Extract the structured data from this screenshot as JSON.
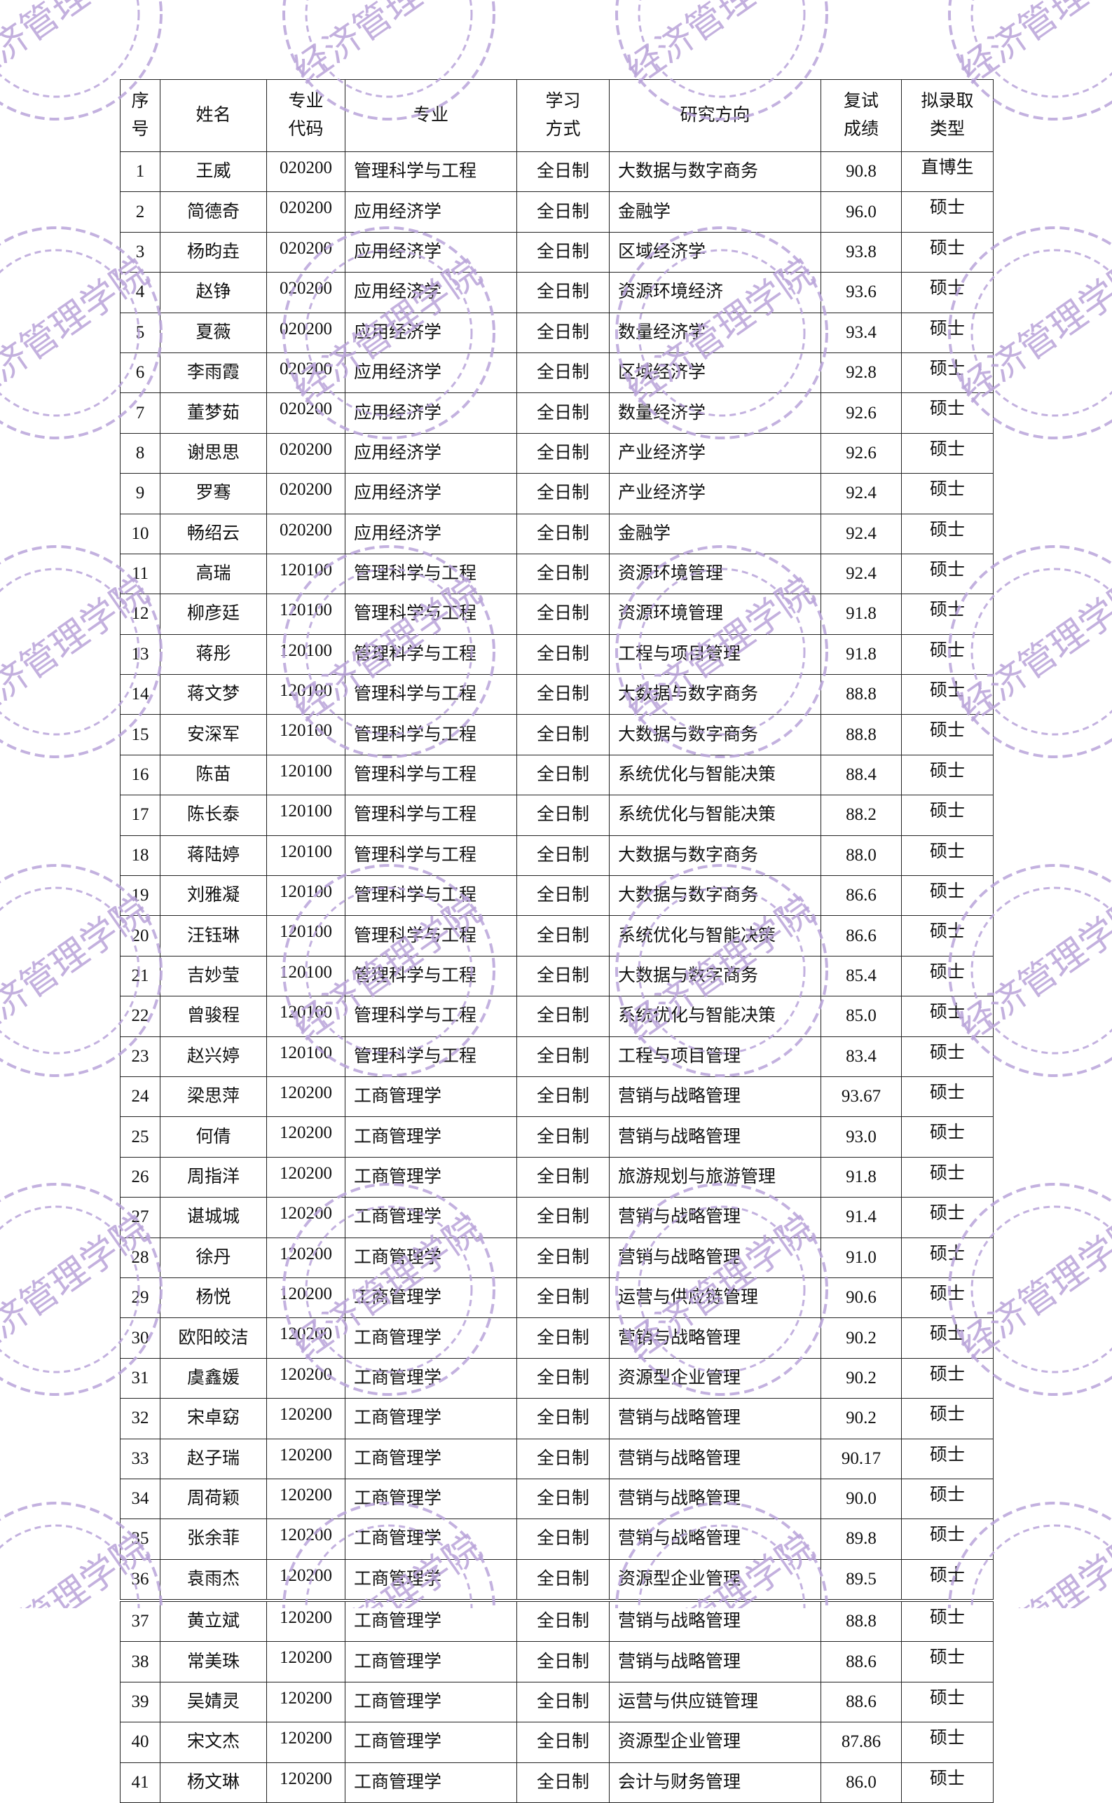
{
  "watermark": {
    "text": "经济管理学院",
    "color": "#b9a3d9"
  },
  "table": {
    "headers": {
      "index": [
        "序",
        "号"
      ],
      "name": "姓名",
      "code": [
        "专业",
        "代码"
      ],
      "major": "专业",
      "mode": [
        "学习",
        "方式"
      ],
      "direction": "研究方向",
      "score": [
        "复试",
        "成绩"
      ],
      "type": [
        "拟录取",
        "类型"
      ]
    },
    "rows": [
      {
        "no": "1",
        "name": "王威",
        "code": "020200",
        "major": "管理科学与工程",
        "mode": "全日制",
        "direction": "大数据与数字商务",
        "score": "90.8",
        "type": "直博生"
      },
      {
        "no": "2",
        "name": "简德奇",
        "code": "020200",
        "major": "应用经济学",
        "mode": "全日制",
        "direction": "金融学",
        "score": "96.0",
        "type": "硕士"
      },
      {
        "no": "3",
        "name": "杨昀垚",
        "code": "020200",
        "major": "应用经济学",
        "mode": "全日制",
        "direction": "区域经济学",
        "score": "93.8",
        "type": "硕士"
      },
      {
        "no": "4",
        "name": "赵铮",
        "code": "020200",
        "major": "应用经济学",
        "mode": "全日制",
        "direction": "资源环境经济",
        "score": "93.6",
        "type": "硕士"
      },
      {
        "no": "5",
        "name": "夏薇",
        "code": "020200",
        "major": "应用经济学",
        "mode": "全日制",
        "direction": "数量经济学",
        "score": "93.4",
        "type": "硕士"
      },
      {
        "no": "6",
        "name": "李雨霞",
        "code": "020200",
        "major": "应用经济学",
        "mode": "全日制",
        "direction": "区域经济学",
        "score": "92.8",
        "type": "硕士"
      },
      {
        "no": "7",
        "name": "董梦茹",
        "code": "020200",
        "major": "应用经济学",
        "mode": "全日制",
        "direction": "数量经济学",
        "score": "92.6",
        "type": "硕士"
      },
      {
        "no": "8",
        "name": "谢思思",
        "code": "020200",
        "major": "应用经济学",
        "mode": "全日制",
        "direction": "产业经济学",
        "score": "92.6",
        "type": "硕士"
      },
      {
        "no": "9",
        "name": "罗骞",
        "code": "020200",
        "major": "应用经济学",
        "mode": "全日制",
        "direction": "产业经济学",
        "score": "92.4",
        "type": "硕士"
      },
      {
        "no": "10",
        "name": "畅绍云",
        "code": "020200",
        "major": "应用经济学",
        "mode": "全日制",
        "direction": "金融学",
        "score": "92.4",
        "type": "硕士"
      },
      {
        "no": "11",
        "name": "高瑞",
        "code": "120100",
        "major": "管理科学与工程",
        "mode": "全日制",
        "direction": "资源环境管理",
        "score": "92.4",
        "type": "硕士"
      },
      {
        "no": "12",
        "name": "柳彦廷",
        "code": "120100",
        "major": "管理科学与工程",
        "mode": "全日制",
        "direction": "资源环境管理",
        "score": "91.8",
        "type": "硕士"
      },
      {
        "no": "13",
        "name": "蒋彤",
        "code": "120100",
        "major": "管理科学与工程",
        "mode": "全日制",
        "direction": "工程与项目管理",
        "score": "91.8",
        "type": "硕士"
      },
      {
        "no": "14",
        "name": "蒋文梦",
        "code": "120100",
        "major": "管理科学与工程",
        "mode": "全日制",
        "direction": "大数据与数字商务",
        "score": "88.8",
        "type": "硕士"
      },
      {
        "no": "15",
        "name": "安深军",
        "code": "120100",
        "major": "管理科学与工程",
        "mode": "全日制",
        "direction": "大数据与数字商务",
        "score": "88.8",
        "type": "硕士"
      },
      {
        "no": "16",
        "name": "陈苗",
        "code": "120100",
        "major": "管理科学与工程",
        "mode": "全日制",
        "direction": "系统优化与智能决策",
        "score": "88.4",
        "type": "硕士"
      },
      {
        "no": "17",
        "name": "陈长泰",
        "code": "120100",
        "major": "管理科学与工程",
        "mode": "全日制",
        "direction": "系统优化与智能决策",
        "score": "88.2",
        "type": "硕士"
      },
      {
        "no": "18",
        "name": "蒋陆婷",
        "code": "120100",
        "major": "管理科学与工程",
        "mode": "全日制",
        "direction": "大数据与数字商务",
        "score": "88.0",
        "type": "硕士"
      },
      {
        "no": "19",
        "name": "刘雅凝",
        "code": "120100",
        "major": "管理科学与工程",
        "mode": "全日制",
        "direction": "大数据与数字商务",
        "score": "86.6",
        "type": "硕士"
      },
      {
        "no": "20",
        "name": "汪钰琳",
        "code": "120100",
        "major": "管理科学与工程",
        "mode": "全日制",
        "direction": "系统优化与智能决策",
        "score": "86.6",
        "type": "硕士"
      },
      {
        "no": "21",
        "name": "吉妙莹",
        "code": "120100",
        "major": "管理科学与工程",
        "mode": "全日制",
        "direction": "大数据与数字商务",
        "score": "85.4",
        "type": "硕士"
      },
      {
        "no": "22",
        "name": "曾骏程",
        "code": "120100",
        "major": "管理科学与工程",
        "mode": "全日制",
        "direction": "系统优化与智能决策",
        "score": "85.0",
        "type": "硕士"
      },
      {
        "no": "23",
        "name": "赵兴婷",
        "code": "120100",
        "major": "管理科学与工程",
        "mode": "全日制",
        "direction": "工程与项目管理",
        "score": "83.4",
        "type": "硕士"
      },
      {
        "no": "24",
        "name": "梁思萍",
        "code": "120200",
        "major": "工商管理学",
        "mode": "全日制",
        "direction": "营销与战略管理",
        "score": "93.67",
        "type": "硕士"
      },
      {
        "no": "25",
        "name": "何倩",
        "code": "120200",
        "major": "工商管理学",
        "mode": "全日制",
        "direction": "营销与战略管理",
        "score": "93.0",
        "type": "硕士"
      },
      {
        "no": "26",
        "name": "周指洋",
        "code": "120200",
        "major": "工商管理学",
        "mode": "全日制",
        "direction": "旅游规划与旅游管理",
        "score": "91.8",
        "type": "硕士"
      },
      {
        "no": "27",
        "name": "谌城城",
        "code": "120200",
        "major": "工商管理学",
        "mode": "全日制",
        "direction": "营销与战略管理",
        "score": "91.4",
        "type": "硕士"
      },
      {
        "no": "28",
        "name": "徐丹",
        "code": "120200",
        "major": "工商管理学",
        "mode": "全日制",
        "direction": "营销与战略管理",
        "score": "91.0",
        "type": "硕士"
      },
      {
        "no": "29",
        "name": "杨悦",
        "code": "120200",
        "major": "工商管理学",
        "mode": "全日制",
        "direction": "运营与供应链管理",
        "score": "90.6",
        "type": "硕士"
      },
      {
        "no": "30",
        "name": "欧阳皎洁",
        "code": "120200",
        "major": "工商管理学",
        "mode": "全日制",
        "direction": "营销与战略管理",
        "score": "90.2",
        "type": "硕士"
      },
      {
        "no": "31",
        "name": "虞鑫媛",
        "code": "120200",
        "major": "工商管理学",
        "mode": "全日制",
        "direction": "资源型企业管理",
        "score": "90.2",
        "type": "硕士"
      },
      {
        "no": "32",
        "name": "宋卓窈",
        "code": "120200",
        "major": "工商管理学",
        "mode": "全日制",
        "direction": "营销与战略管理",
        "score": "90.2",
        "type": "硕士"
      },
      {
        "no": "33",
        "name": "赵子瑞",
        "code": "120200",
        "major": "工商管理学",
        "mode": "全日制",
        "direction": "营销与战略管理",
        "score": "90.17",
        "type": "硕士"
      },
      {
        "no": "34",
        "name": "周荷颖",
        "code": "120200",
        "major": "工商管理学",
        "mode": "全日制",
        "direction": "营销与战略管理",
        "score": "90.0",
        "type": "硕士"
      },
      {
        "no": "35",
        "name": "张余菲",
        "code": "120200",
        "major": "工商管理学",
        "mode": "全日制",
        "direction": "营销与战略管理",
        "score": "89.8",
        "type": "硕士"
      },
      {
        "no": "36",
        "name": "袁雨杰",
        "code": "120200",
        "major": "工商管理学",
        "mode": "全日制",
        "direction": "资源型企业管理",
        "score": "89.5",
        "type": "硕士"
      },
      {
        "no": "37",
        "name": "黄立斌",
        "code": "120200",
        "major": "工商管理学",
        "mode": "全日制",
        "direction": "营销与战略管理",
        "score": "88.8",
        "type": "硕士"
      },
      {
        "no": "38",
        "name": "常美珠",
        "code": "120200",
        "major": "工商管理学",
        "mode": "全日制",
        "direction": "营销与战略管理",
        "score": "88.6",
        "type": "硕士"
      },
      {
        "no": "39",
        "name": "吴婧灵",
        "code": "120200",
        "major": "工商管理学",
        "mode": "全日制",
        "direction": "运营与供应链管理",
        "score": "88.6",
        "type": "硕士"
      },
      {
        "no": "40",
        "name": "宋文杰",
        "code": "120200",
        "major": "工商管理学",
        "mode": "全日制",
        "direction": "资源型企业管理",
        "score": "87.86",
        "type": "硕士"
      },
      {
        "no": "41",
        "name": "杨文琳",
        "code": "120200",
        "major": "工商管理学",
        "mode": "全日制",
        "direction": "会计与财务管理",
        "score": "86.0",
        "type": "硕士"
      }
    ]
  }
}
